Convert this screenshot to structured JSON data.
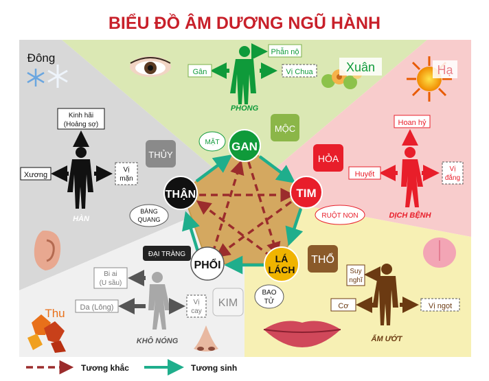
{
  "title": "BIỂU ĐỒ ÂM DƯƠNG NGŨ HÀNH",
  "colors": {
    "wood_bg": "#dbe8b4",
    "fire_bg": "#f8cccc",
    "earth_bg": "#f7f0b4",
    "metal_bg": "#f0f0f0",
    "water_bg": "#d8d8d8",
    "wood": "#0f9a3a",
    "fire": "#e81e2a",
    "earth": "#f0b400",
    "metal": "#ffffff",
    "water": "#111111",
    "pentagon": "#d4a860",
    "generate": "#1fae8c",
    "control": "#9b2c2c",
    "title": "#c8202a"
  },
  "wood": {
    "season": "Xuân",
    "element": "MỘC",
    "organ": "GAN",
    "sense": "MẶT",
    "tissue": "Gân",
    "emotion": "Phẫn nộ",
    "taste": "Vị Chua",
    "climate": "PHONG"
  },
  "fire": {
    "season": "Hạ",
    "element": "HỎA",
    "organ": "TIM",
    "partner": "RUỘT NON",
    "tissue": "Huyết",
    "emotion": "Hoan hỷ",
    "taste_line1": "Vị",
    "taste_line2": "đắng",
    "climate": "DỊCH BỆNH"
  },
  "earth": {
    "element": "THỔ",
    "organ_line1": "LÁ",
    "organ_line2": "LÁCH",
    "partner_line1": "BAO",
    "partner_line2": "TỬ",
    "tissue": "Cơ",
    "emotion_line1": "Suy",
    "emotion_line2": "nghĩ",
    "taste": "Vị ngọt",
    "climate": "ẨM ƯỚT"
  },
  "metal": {
    "season": "Thu",
    "element": "KIM",
    "organ": "PHỔI",
    "partner": "ĐẠI TRÀNG",
    "tissue": "Da (Lông)",
    "emotion_line1": "Bi ai",
    "emotion_line2": "(U sầu)",
    "taste_line1": "Vị",
    "taste_line2": "cay",
    "climate": "KHÔ NÓNG"
  },
  "water": {
    "season": "Đông",
    "element": "THỦY",
    "organ": "THẬN",
    "partner_line1": "BÀNG",
    "partner_line2": "QUANG",
    "tissue": "Xương",
    "emotion_line1": "Kinh hãi",
    "emotion_line2": "(Hoảng sợ)",
    "taste_line1": "Vị",
    "taste_line2": "mặn",
    "climate": "HÀN"
  },
  "legend": {
    "control": "Tương khắc",
    "generate": "Tương sinh"
  }
}
